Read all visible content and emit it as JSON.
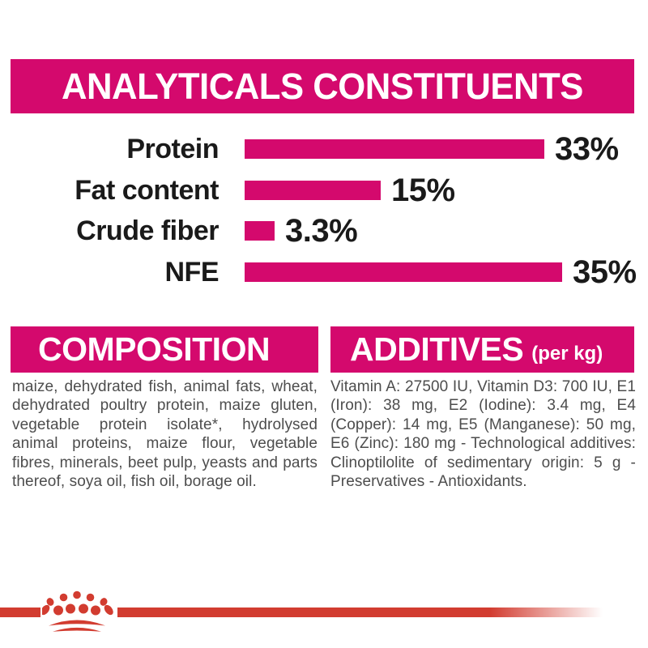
{
  "header": {
    "title": "ANALYTICALS CONSTITUENTS"
  },
  "chart_data": {
    "type": "bar",
    "orientation": "horizontal",
    "categories": [
      "Protein",
      "Fat content",
      "Crude fiber",
      "NFE"
    ],
    "values": [
      33,
      15,
      3.3,
      35
    ],
    "value_labels": [
      "33%",
      "15%",
      "3.3%",
      "35%"
    ],
    "unit": "%",
    "xlim": [
      0,
      42
    ],
    "grid": false,
    "legend": false,
    "bar_color": "#d4096d",
    "title": "ANALYTICALS CONSTITUENTS"
  },
  "sections": {
    "composition": {
      "title": "COMPOSITION",
      "body": "maize, dehydrated fish, animal fats, wheat, dehydrated poultry protein, maize gluten, vegetable protein isolate*, hydrolysed animal proteins, maize flour, vegetable fibres, minerals, beet pulp, yeasts and parts thereof, soya oil, fish oil, borage oil."
    },
    "additives": {
      "title": "ADDITIVES",
      "title_suffix": "(per kg)",
      "body": "Vitamin A: 27500 IU, Vitamin D3: 700 IU, E1 (Iron): 38 mg, E2 (Iodine): 3.4 mg, E4 (Copper): 14 mg, E5 (Manganese): 50 mg, E6 (Zinc): 180 mg - Technological additives: Clinoptilolite of sedimentary origin: 5 g - Preservatives - Antioxidants."
    }
  },
  "footer": {
    "brand_logo": "royal-canin-crown-icon"
  },
  "colors": {
    "magenta": "#d4096d",
    "red": "#d23c30",
    "body_text": "#4d4d4d",
    "chart_text": "#1a1a1a",
    "background": "#ffffff"
  }
}
